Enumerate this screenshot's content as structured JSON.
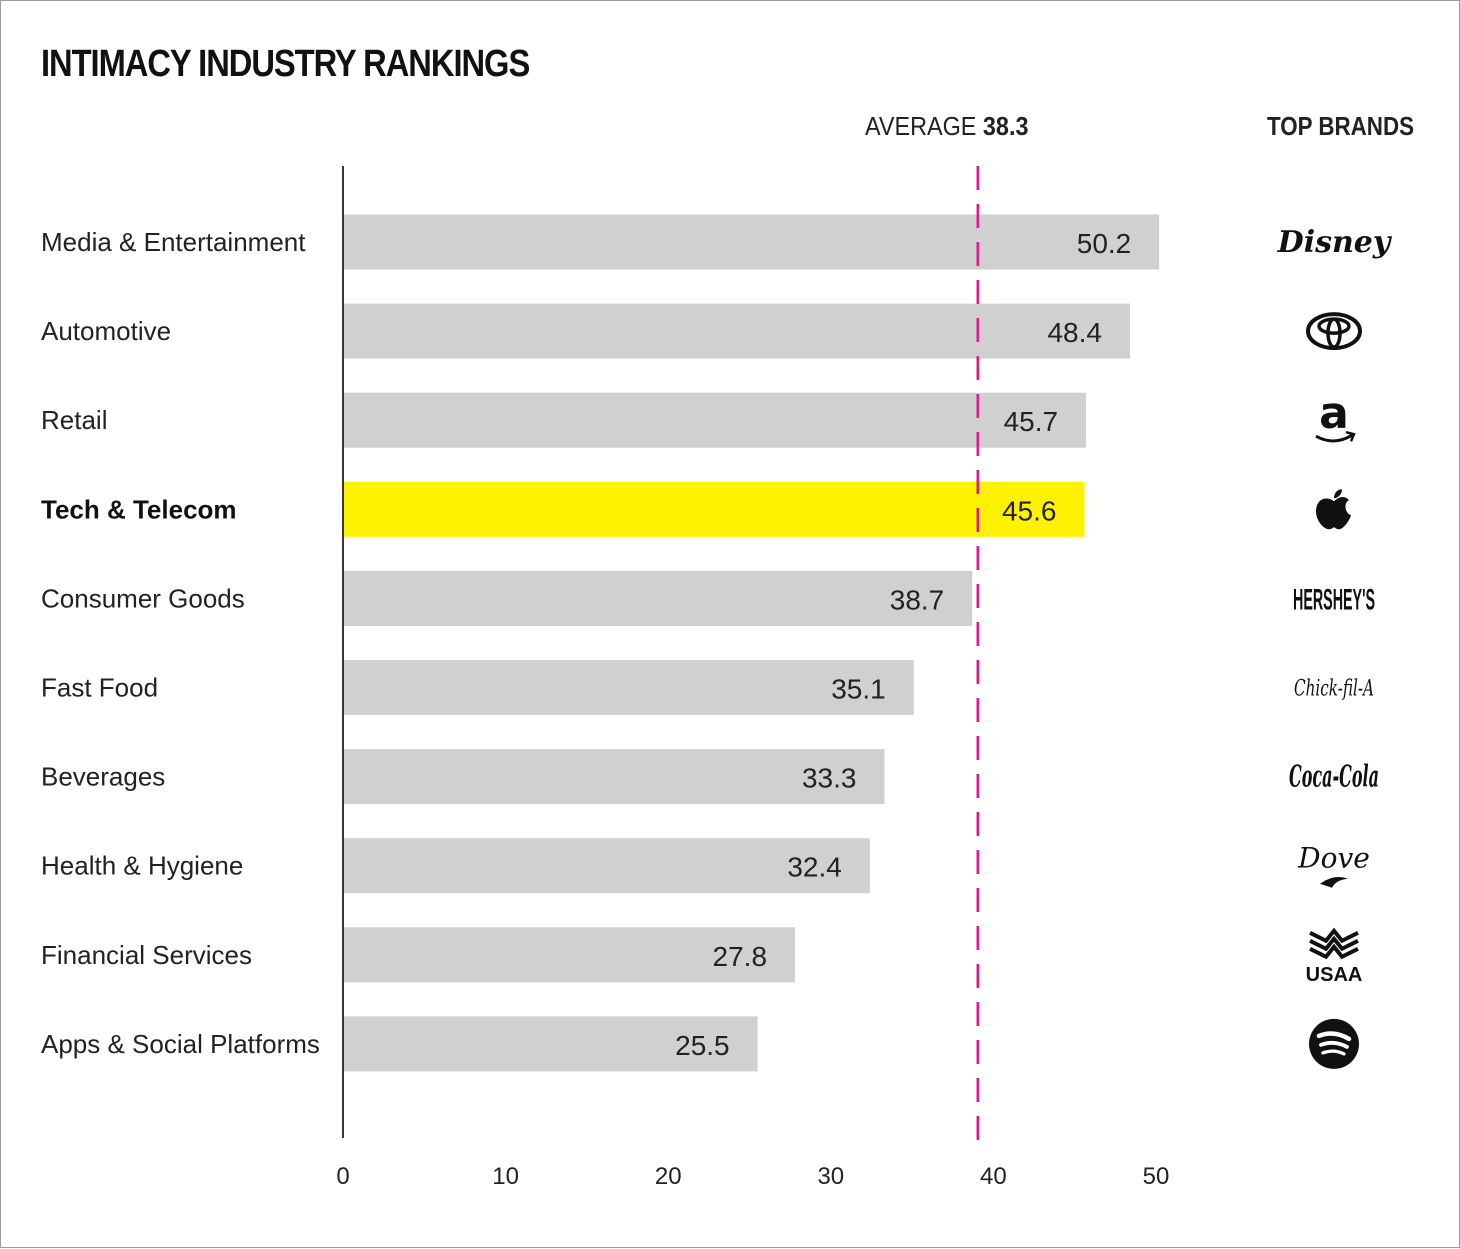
{
  "title": "INTIMACY INDUSTRY RANKINGS",
  "average": {
    "label": "AVERAGE",
    "value_text": "38.3",
    "value": 38.3
  },
  "brands_header": "TOP BRANDS",
  "colors": {
    "bar": "#d0d0d0",
    "highlight": "#fff200",
    "average_line": "#e6178a",
    "axis": "#222222"
  },
  "chart_data": {
    "type": "bar",
    "orientation": "horizontal",
    "title": "INTIMACY INDUSTRY RANKINGS",
    "categories": [
      "Media & Entertainment",
      "Automotive",
      "Retail",
      "Tech & Telecom",
      "Consumer Goods",
      "Fast Food",
      "Beverages",
      "Health & Hygiene",
      "Financial Services",
      "Apps & Social Platforms"
    ],
    "values": [
      50.2,
      48.4,
      45.7,
      45.6,
      38.7,
      35.1,
      33.3,
      32.4,
      27.8,
      25.5
    ],
    "value_labels": [
      "50.2",
      "48.4",
      "45.7",
      "45.6",
      "38.7",
      "35.1",
      "33.3",
      "32.4",
      "27.8",
      "25.5"
    ],
    "highlight_index": 3,
    "xlim": [
      0,
      50
    ],
    "xticks": [
      0,
      10,
      20,
      30,
      40,
      50
    ],
    "xtick_labels": [
      "0",
      "10",
      "20",
      "30",
      "40",
      "50"
    ],
    "grid": false,
    "top_brands": [
      {
        "brand": "Disney",
        "icon": "disney-logo"
      },
      {
        "brand": "Toyota",
        "icon": "toyota-logo"
      },
      {
        "brand": "Amazon",
        "icon": "amazon-logo"
      },
      {
        "brand": "Apple",
        "icon": "apple-logo"
      },
      {
        "brand": "HERSHEY'S",
        "icon": "hersheys-logo"
      },
      {
        "brand": "Chick-fil-A",
        "icon": "chick-fil-a-logo"
      },
      {
        "brand": "Coca-Cola",
        "icon": "coca-cola-logo"
      },
      {
        "brand": "Dove",
        "icon": "dove-logo"
      },
      {
        "brand": "USAA",
        "icon": "usaa-logo"
      },
      {
        "brand": "Spotify",
        "icon": "spotify-logo"
      }
    ]
  }
}
